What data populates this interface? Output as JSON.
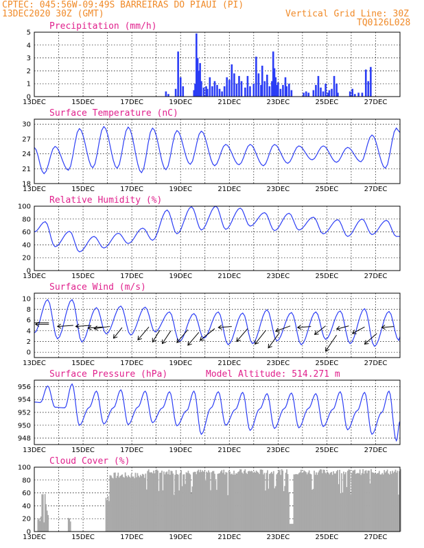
{
  "header": {
    "station": "CPTEC:  045:56W-09:49S  BARREIRAS DO PIAUI (PI)",
    "date": "13DEC2020 30Z (GMT)",
    "grid_note": "Vertical Grid Line: 30Z",
    "code": "TQ0126L028"
  },
  "x_labels": [
    "13DEC",
    "15DEC",
    "17DEC",
    "19DEC",
    "21DEC",
    "23DEC",
    "25DEC",
    "27DEC"
  ],
  "chart_data": [
    {
      "id": "precip",
      "type": "bar",
      "title": "Precipitation (mm/h)",
      "ylim": [
        0,
        5
      ],
      "yticks": [
        0,
        1,
        2,
        3,
        4,
        5
      ],
      "color": "#2b3df5",
      "x_range": [
        0,
        15
      ],
      "x_unit": "days since 13DEC",
      "bars": [
        [
          5.4,
          0.4
        ],
        [
          5.5,
          0.2
        ],
        [
          5.8,
          0.6
        ],
        [
          5.9,
          3.5
        ],
        [
          6.0,
          1.5
        ],
        [
          6.1,
          0.8
        ],
        [
          6.55,
          0.5
        ],
        [
          6.6,
          1.0
        ],
        [
          6.65,
          4.9
        ],
        [
          6.7,
          3.0
        ],
        [
          6.75,
          2.0
        ],
        [
          6.8,
          2.6
        ],
        [
          6.85,
          1.2
        ],
        [
          6.95,
          0.7
        ],
        [
          7.05,
          0.8
        ],
        [
          7.1,
          0.6
        ],
        [
          7.2,
          1.5
        ],
        [
          7.3,
          0.8
        ],
        [
          7.4,
          1.2
        ],
        [
          7.5,
          0.9
        ],
        [
          7.6,
          0.6
        ],
        [
          7.7,
          0.4
        ],
        [
          7.8,
          0.8
        ],
        [
          7.9,
          1.5
        ],
        [
          8.0,
          1.3
        ],
        [
          8.1,
          2.5
        ],
        [
          8.2,
          1.8
        ],
        [
          8.3,
          1.0
        ],
        [
          8.4,
          1.6
        ],
        [
          8.5,
          1.2
        ],
        [
          8.65,
          0.7
        ],
        [
          8.75,
          1.6
        ],
        [
          8.85,
          0.8
        ],
        [
          9.0,
          1.0
        ],
        [
          9.1,
          3.1
        ],
        [
          9.2,
          1.8
        ],
        [
          9.3,
          0.9
        ],
        [
          9.35,
          2.4
        ],
        [
          9.45,
          1.2
        ],
        [
          9.55,
          1.7
        ],
        [
          9.65,
          0.8
        ],
        [
          9.75,
          1.2
        ],
        [
          9.8,
          3.5
        ],
        [
          9.85,
          2.2
        ],
        [
          9.9,
          1.5
        ],
        [
          9.95,
          0.9
        ],
        [
          10.0,
          1.1
        ],
        [
          10.1,
          0.6
        ],
        [
          10.2,
          0.9
        ],
        [
          10.3,
          1.5
        ],
        [
          10.35,
          0.8
        ],
        [
          10.45,
          1.0
        ],
        [
          10.55,
          0.5
        ],
        [
          11.05,
          0.3
        ],
        [
          11.15,
          0.4
        ],
        [
          11.25,
          0.3
        ],
        [
          11.45,
          0.5
        ],
        [
          11.55,
          0.9
        ],
        [
          11.65,
          1.6
        ],
        [
          11.75,
          0.7
        ],
        [
          11.85,
          0.4
        ],
        [
          11.95,
          1.0
        ],
        [
          12.05,
          0.3
        ],
        [
          12.1,
          0.5
        ],
        [
          12.2,
          0.6
        ],
        [
          12.3,
          1.6
        ],
        [
          12.4,
          1.0
        ],
        [
          12.45,
          0.3
        ],
        [
          12.95,
          0.4
        ],
        [
          13.05,
          0.6
        ],
        [
          13.15,
          0.2
        ],
        [
          13.3,
          0.3
        ],
        [
          13.45,
          0.3
        ],
        [
          13.6,
          2.1
        ],
        [
          13.7,
          1.2
        ],
        [
          13.8,
          2.3
        ]
      ]
    },
    {
      "id": "temp",
      "type": "line",
      "title": "Surface Temperature (nC)",
      "ylim": [
        18,
        31
      ],
      "yticks": [
        18,
        21,
        24,
        27,
        30
      ],
      "color": "#2b3df5",
      "x_range": [
        0,
        15
      ],
      "x_unit": "days since 13DEC",
      "tmin": [
        20,
        20.7,
        21.2,
        21.1,
        20.2,
        20.8,
        21.9,
        21.6,
        21.8,
        21.6,
        22.1,
        22.8,
        22.3,
        22.4,
        21.1
      ],
      "tmax": [
        25.5,
        29.1,
        29.5,
        29.4,
        29.2,
        28.7,
        28.6,
        25.9,
        25.9,
        25.9,
        25.6,
        25.6,
        25.3,
        27.8,
        29.2,
        30.3
      ],
      "tfirst": 25.3,
      "tend": 28.3
    },
    {
      "id": "rh",
      "type": "line",
      "title": "Relative Humidity (%)",
      "ylim": [
        0,
        100
      ],
      "yticks": [
        0,
        20,
        40,
        60,
        80,
        100
      ],
      "color": "#2b3df5",
      "x_range": [
        0,
        15
      ],
      "x_unit": "days since 13DEC",
      "hmax": [
        76,
        61,
        53,
        58,
        66,
        94,
        99,
        100,
        97,
        90,
        89,
        83,
        79,
        80,
        78
      ],
      "hmin": [
        37,
        29,
        35,
        42,
        47,
        57,
        63,
        64,
        69,
        62,
        63,
        57,
        53,
        56,
        53,
        38
      ],
      "hfirst": 60,
      "hend": 53
    },
    {
      "id": "wind",
      "type": "line",
      "title": "Surface Wind (m/s)",
      "ylim": [
        -1,
        11
      ],
      "yticks": [
        0,
        2,
        4,
        6,
        8,
        10
      ],
      "color": "#2b3df5",
      "x_range": [
        0,
        15
      ],
      "x_unit": "days since 13DEC",
      "wpeak": [
        9.8,
        9.8,
        8.3,
        8.6,
        8.4,
        7.5,
        7.2,
        7.5,
        7.3,
        7.9,
        7.4,
        7.5,
        7.7,
        8.1,
        7.6
      ],
      "wlow": [
        2.5,
        1.9,
        3.4,
        3.2,
        3.8,
        2.0,
        2.6,
        1.4,
        1.6,
        2.1,
        1.4,
        2.4,
        1.6,
        1.1,
        2.2
      ],
      "wfirst": 3.6,
      "wend": 2.9,
      "barbs": [
        [
          0.6,
          5.2,
          -0.55,
          0
        ],
        [
          1.6,
          5.0,
          -0.65,
          -0.05
        ],
        [
          2.3,
          5.0,
          -0.6,
          -0.05
        ],
        [
          2.8,
          4.7,
          -0.6,
          -0.05
        ],
        [
          3.1,
          4.8,
          -0.65,
          -0.1
        ],
        [
          3.6,
          4.6,
          -0.35,
          -0.5
        ],
        [
          4.7,
          4.7,
          -0.45,
          -0.6
        ],
        [
          5.15,
          4.1,
          -0.3,
          -0.55
        ],
        [
          5.6,
          4.0,
          -0.35,
          -0.6
        ],
        [
          6.3,
          4.2,
          -0.45,
          -0.6
        ],
        [
          6.75,
          3.7,
          -0.45,
          -0.6
        ],
        [
          7.4,
          4.4,
          -0.6,
          -0.55
        ],
        [
          8.1,
          4.8,
          -0.55,
          -0.05
        ],
        [
          8.75,
          4.4,
          -0.45,
          -0.6
        ],
        [
          9.5,
          4.1,
          -0.45,
          -0.65
        ],
        [
          10.05,
          3.6,
          -0.45,
          -0.7
        ],
        [
          10.5,
          4.9,
          -0.6,
          -0.25
        ],
        [
          11.35,
          4.8,
          -0.55,
          -0.05
        ],
        [
          11.95,
          4.9,
          -0.45,
          -0.4
        ],
        [
          12.4,
          3.2,
          -0.45,
          -0.75
        ],
        [
          12.9,
          4.9,
          -0.5,
          -0.15
        ],
        [
          13.55,
          4.7,
          -0.5,
          -0.3
        ],
        [
          14.05,
          3.5,
          -0.5,
          -0.5
        ],
        [
          14.75,
          4.8,
          -0.5,
          -0.05
        ]
      ]
    },
    {
      "id": "pres",
      "type": "line",
      "title": "Surface Pressure (hPa)",
      "subtitle": "Model Altitude: 514.271 m",
      "ylim": [
        947,
        957
      ],
      "yticks": [
        948,
        950,
        952,
        954,
        956
      ],
      "color": "#2b3df5",
      "x_range": [
        0,
        15
      ],
      "x_unit": "days since 13DEC",
      "pmax": [
        956.1,
        956.4,
        955.3,
        955.5,
        955.3,
        955.2,
        955.3,
        955.2,
        955.1,
        954.9,
        955.0,
        954.9,
        955.2,
        955.1,
        955.3
      ],
      "pmin": [
        952.8,
        950.0,
        950.2,
        950.1,
        950.4,
        949.9,
        948.6,
        950.0,
        949.2,
        949.5,
        949.6,
        949.8,
        949.3,
        948.6,
        947.6
      ],
      "pmid": 953.0,
      "pfirst": 953.6,
      "pend": 950.6
    },
    {
      "id": "cloud",
      "type": "bar",
      "title": "Cloud Cover (%)",
      "ylim": [
        0,
        100
      ],
      "yticks": [
        0,
        20,
        40,
        60,
        80,
        100
      ],
      "color": "#a9a9a9",
      "x_range": [
        0,
        15
      ],
      "x_unit": "days since 13DEC"
    }
  ]
}
